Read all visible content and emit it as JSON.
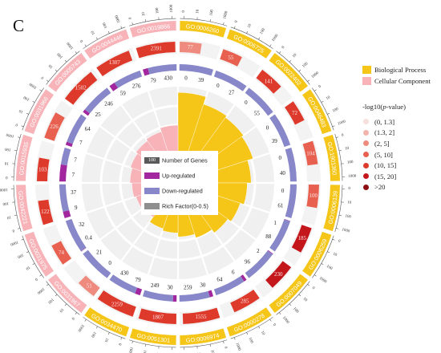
{
  "panel_label": "C",
  "legend": {
    "categories": [
      {
        "label": "Biological Process",
        "color": "#f5c518"
      },
      {
        "label": "Cellular Component",
        "color": "#f7b3b8"
      }
    ],
    "pvalue_title_pre": "-log10(",
    "pvalue_title_var": "p",
    "pvalue_title_post": "-value)",
    "pvalue_bins": [
      {
        "label": "(0, 1.3]",
        "color": "#f7dfdc"
      },
      {
        "label": "(1.3, 2]",
        "color": "#f2b5ad"
      },
      {
        "label": "(2, 5]",
        "color": "#ee8a7e"
      },
      {
        "label": "(5, 10]",
        "color": "#e8604f"
      },
      {
        "label": "(10, 15]",
        "color": "#de3a2c"
      },
      {
        "label": "(15, 20]",
        "color": "#c4171c"
      },
      {
        "label": ">20",
        "color": "#8e0d12"
      }
    ]
  },
  "center_legend": [
    {
      "label": "Number of Genes",
      "color": "#595959",
      "sample": "100"
    },
    {
      "label": "Up-regulated",
      "color": "#a2279f"
    },
    {
      "label": "Down-regulated",
      "color": "#8787c9"
    },
    {
      "label": "Rich Factor(0-0.5)",
      "color": "#8f8f8f"
    }
  ],
  "chart_data": {
    "type": "circular-enrichment",
    "ring1_ticks": [
      "0",
      "10",
      "100",
      "1000"
    ],
    "terms": [
      {
        "id": "GO:0006260",
        "category": "Biological Process",
        "total": 77,
        "pbin": 2,
        "up": 0,
        "down": 39,
        "rich": 0.47
      },
      {
        "id": "GO:0006725",
        "category": "Biological Process",
        "total": 55,
        "pbin": 3,
        "up": 0,
        "down": 27,
        "rich": 0.43
      },
      {
        "id": "GO:0022402",
        "category": "Biological Process",
        "total": 141,
        "pbin": 4,
        "up": 0,
        "down": 55,
        "rich": 0.42
      },
      {
        "id": "GO:0046483",
        "category": "Biological Process",
        "total": 72,
        "pbin": 4,
        "up": 0,
        "down": 39,
        "rich": 0.41
      },
      {
        "id": "GO:1901360",
        "category": "Biological Process",
        "total": 104,
        "pbin": 3,
        "up": 0,
        "down": 40,
        "rich": 0.38
      },
      {
        "id": "GO:0006139",
        "category": "Biological Process",
        "total": 100,
        "pbin": 3,
        "up": 0,
        "down": 61,
        "rich": 0.36
      },
      {
        "id": "GO:0006259",
        "category": "Biological Process",
        "total": 185,
        "pbin": 5,
        "up": 1,
        "down": 88,
        "rich": 0.34
      },
      {
        "id": "GO:0007049",
        "category": "Biological Process",
        "total": 230,
        "pbin": 5,
        "up": 2,
        "down": 96,
        "rich": 0.32
      },
      {
        "id": "GO:0000278",
        "category": "Biological Process",
        "total": 285,
        "pbin": 4,
        "up": 6,
        "down": 64,
        "rich": 0.3
      },
      {
        "id": "GO:0006974",
        "category": "Biological Process",
        "total": 1555,
        "pbin": 4,
        "up": 30,
        "down": 259,
        "rich": 0.28
      },
      {
        "id": "GO:0051301",
        "category": "Biological Process",
        "total": 1807,
        "pbin": 4,
        "up": 30,
        "down": 249,
        "rich": 0.26
      },
      {
        "id": "GO:0034470",
        "category": "Biological Process",
        "total": 2259,
        "pbin": 4,
        "up": 79,
        "down": 430,
        "rich": 0.25
      },
      {
        "id": "GO:0031967",
        "category": "Cellular Component",
        "total": 51,
        "pbin": 2,
        "up": 0,
        "down": 21,
        "rich": 0.22
      },
      {
        "id": "GO:0031975",
        "category": "Cellular Component",
        "total": 74,
        "pbin": 3,
        "up": 0.4,
        "down": 32,
        "rich": 0.23
      },
      {
        "id": "GO:0042221",
        "category": "Cellular Component",
        "total": 122,
        "pbin": 4,
        "up": 9,
        "down": 37,
        "rich": 0.24
      },
      {
        "id": "GO:0015935",
        "category": "Cellular Component",
        "total": 103,
        "pbin": 4,
        "up": 7,
        "down": 7,
        "rich": 0.25
      },
      {
        "id": "GO:0031966",
        "category": "Cellular Component",
        "total": 226,
        "pbin": 3,
        "up": 7,
        "down": 64,
        "rich": 0.26
      },
      {
        "id": "GO:0005743",
        "category": "Cellular Component",
        "total": 1502,
        "pbin": 4,
        "up": 25,
        "down": 246,
        "rich": 0.27
      },
      {
        "id": "GO:0044446",
        "category": "Cellular Component",
        "total": 1307,
        "pbin": 4,
        "up": 59,
        "down": 276,
        "rich": 0.28
      },
      {
        "id": "GO:0019866",
        "category": "Cellular Component",
        "total": 2391,
        "pbin": 4,
        "up": 79,
        "down": 430,
        "rich": 0.3
      }
    ]
  }
}
